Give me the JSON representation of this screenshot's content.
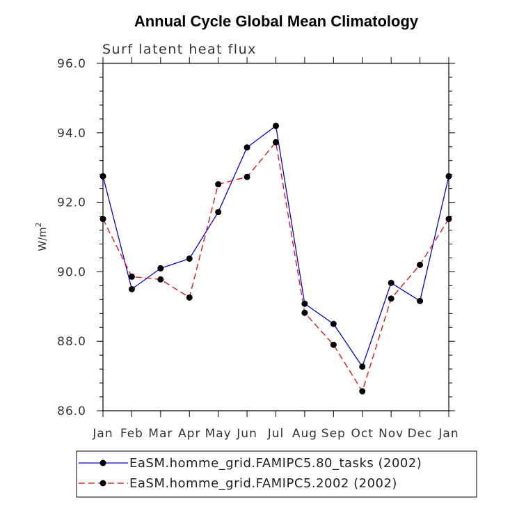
{
  "chart_data": {
    "type": "line",
    "title": "Annual Cycle Global Mean Climatology",
    "subtitle": "Surf latent heat flux",
    "xlabel": "",
    "ylabel": "W/m",
    "ylabel_superscript": "2",
    "categories": [
      "Jan",
      "Feb",
      "Mar",
      "Apr",
      "May",
      "Jun",
      "Jul",
      "Aug",
      "Sep",
      "Oct",
      "Nov",
      "Dec",
      "Jan"
    ],
    "ylim": [
      86.0,
      96.0
    ],
    "yticks": [
      {
        "value": 86.0,
        "label": "86.0"
      },
      {
        "value": 88.0,
        "label": "88.0"
      },
      {
        "value": 90.0,
        "label": "90.0"
      },
      {
        "value": 92.0,
        "label": "92.0"
      },
      {
        "value": 94.0,
        "label": "94.0"
      },
      {
        "value": 96.0,
        "label": "96.0"
      }
    ],
    "series": [
      {
        "name": "EaSM.homme_grid.FAMIPC5.80_tasks (2002)",
        "color": "#0000ff",
        "dash": "solid",
        "values": [
          92.75,
          89.5,
          90.1,
          90.38,
          91.72,
          93.58,
          94.2,
          89.08,
          88.5,
          87.27,
          89.68,
          89.16,
          92.75
        ]
      },
      {
        "name": "EaSM.homme_grid.FAMIPC5.2002 (2002)",
        "color": "#ff0000",
        "dash": "dashed",
        "values": [
          91.52,
          89.86,
          89.78,
          89.26,
          92.52,
          92.73,
          93.73,
          88.82,
          87.9,
          86.56,
          89.23,
          90.2,
          91.52
        ]
      }
    ],
    "legend_position": "bottom",
    "marker_color": "#000000"
  }
}
